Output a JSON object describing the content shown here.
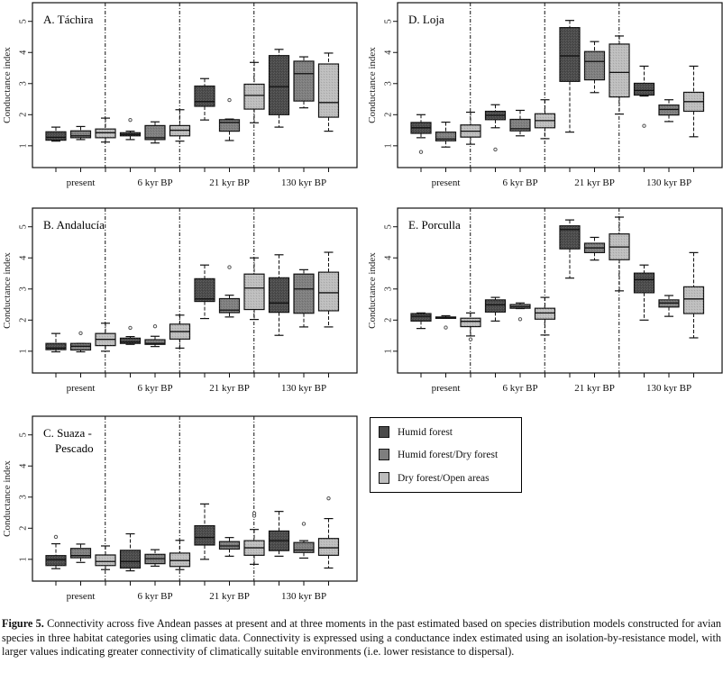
{
  "figure": {
    "caption_bold": "Figure 5.",
    "caption_text": " Connectivity across five Andean passes at present and at three moments in the past estimated based on species distribution models constructed for avian species in three habitat categories using climatic data. Connectivity is expressed using a conductance index estimated using an isolation-by-resistance model, with larger values indicating greater connectivity of climatically suitable environments (i.e. lower resistance to dispersal)."
  },
  "legend": {
    "items": [
      {
        "label": "Humid forest",
        "color": "#4a4a4a"
      },
      {
        "label": "Humid forest/Dry forest",
        "color": "#7e7e7e"
      },
      {
        "label": "Dry forest/Open areas",
        "color": "#bdbdbd"
      }
    ]
  },
  "chart_data": [
    {
      "type": "box",
      "title": "A. Táchira",
      "ylabel": "Conductance index",
      "ylim": [
        0.3,
        5.6
      ],
      "yticks": [
        1,
        2,
        3,
        4,
        5
      ],
      "categories": [
        "present",
        "6 kyr BP",
        "21 kyr BP",
        "130 kyr BP"
      ],
      "series": [
        "Humid forest",
        "Humid forest/Dry forest",
        "Dry forest/Open areas"
      ],
      "boxes": [
        [
          {
            "min": 1.15,
            "q1": 1.18,
            "med": 1.27,
            "q3": 1.45,
            "max": 1.6,
            "out": []
          },
          {
            "min": 1.2,
            "q1": 1.26,
            "med": 1.32,
            "q3": 1.48,
            "max": 1.62,
            "out": []
          },
          {
            "min": 1.12,
            "q1": 1.26,
            "med": 1.42,
            "q3": 1.54,
            "max": 1.89,
            "out": []
          }
        ],
        [
          {
            "min": 1.2,
            "q1": 1.32,
            "med": 1.36,
            "q3": 1.42,
            "max": 1.47,
            "out": [
              1.83
            ]
          },
          {
            "min": 1.09,
            "q1": 1.2,
            "med": 1.26,
            "q3": 1.65,
            "max": 1.77,
            "out": []
          },
          {
            "min": 1.15,
            "q1": 1.32,
            "med": 1.5,
            "q3": 1.65,
            "max": 2.16,
            "out": []
          }
        ],
        [
          {
            "min": 1.83,
            "q1": 2.27,
            "med": 2.42,
            "q3": 2.92,
            "max": 3.16,
            "out": []
          },
          {
            "min": 1.17,
            "q1": 1.47,
            "med": 1.75,
            "q3": 1.84,
            "max": 1.86,
            "out": [
              2.47
            ]
          },
          {
            "min": 1.74,
            "q1": 2.18,
            "med": 2.62,
            "q3": 2.98,
            "max": 3.68,
            "out": []
          }
        ],
        [
          {
            "min": 1.6,
            "q1": 2.0,
            "med": 2.9,
            "q3": 3.9,
            "max": 4.1,
            "out": []
          },
          {
            "min": 2.22,
            "q1": 2.44,
            "med": 3.32,
            "q3": 3.72,
            "max": 3.86,
            "out": []
          },
          {
            "min": 1.47,
            "q1": 1.92,
            "med": 2.39,
            "q3": 3.63,
            "max": 3.98,
            "out": []
          }
        ]
      ]
    },
    {
      "type": "box",
      "title": "B. Andalucía",
      "ylabel": "Conductance index",
      "ylim": [
        0.3,
        5.6
      ],
      "yticks": [
        1,
        2,
        3,
        4,
        5
      ],
      "categories": [
        "present",
        "6 kyr BP",
        "21 kyr BP",
        "130 kyr BP"
      ],
      "series": [
        "Humid forest",
        "Humid forest/Dry forest",
        "Dry forest/Open areas"
      ],
      "boxes": [
        [
          {
            "min": 0.98,
            "q1": 1.05,
            "med": 1.1,
            "q3": 1.25,
            "max": 1.57,
            "out": []
          },
          {
            "min": 0.98,
            "q1": 1.04,
            "med": 1.16,
            "q3": 1.25,
            "max": 1.25,
            "out": [
              1.58
            ]
          },
          {
            "min": 1.0,
            "q1": 1.18,
            "med": 1.38,
            "q3": 1.57,
            "max": 1.9,
            "out": []
          }
        ],
        [
          {
            "min": 1.22,
            "q1": 1.25,
            "med": 1.3,
            "q3": 1.42,
            "max": 1.47,
            "out": [
              1.75
            ]
          },
          {
            "min": 1.15,
            "q1": 1.22,
            "med": 1.25,
            "q3": 1.37,
            "max": 1.48,
            "out": [
              1.8
            ]
          },
          {
            "min": 1.1,
            "q1": 1.39,
            "med": 1.63,
            "q3": 1.87,
            "max": 2.16,
            "out": []
          }
        ],
        [
          {
            "min": 2.05,
            "q1": 2.6,
            "med": 2.68,
            "q3": 3.33,
            "max": 3.77,
            "out": []
          },
          {
            "min": 2.1,
            "q1": 2.24,
            "med": 2.32,
            "q3": 2.69,
            "max": 2.8,
            "out": [
              3.7
            ]
          },
          {
            "min": 2.02,
            "q1": 2.34,
            "med": 3.03,
            "q3": 3.48,
            "max": 4.0,
            "out": []
          }
        ],
        [
          {
            "min": 1.51,
            "q1": 2.25,
            "med": 2.55,
            "q3": 3.36,
            "max": 4.1,
            "out": []
          },
          {
            "min": 1.78,
            "q1": 2.22,
            "med": 3.0,
            "q3": 3.48,
            "max": 3.62,
            "out": []
          },
          {
            "min": 1.78,
            "q1": 2.3,
            "med": 2.88,
            "q3": 3.54,
            "max": 4.18,
            "out": []
          }
        ]
      ]
    },
    {
      "type": "box",
      "title": "C. Suaza -",
      "title_line2": "Pescado",
      "ylabel": "Conductance index",
      "ylim": [
        0.3,
        5.6
      ],
      "yticks": [
        1,
        2,
        3,
        4,
        5
      ],
      "categories": [
        "present",
        "6 kyr BP",
        "21 kyr BP",
        "130 kyr BP"
      ],
      "series": [
        "Humid forest",
        "Humid forest/Dry forest",
        "Dry forest/Open areas"
      ],
      "boxes": [
        [
          {
            "min": 0.7,
            "q1": 0.8,
            "med": 0.99,
            "q3": 1.12,
            "max": 1.5,
            "out": [
              1.72
            ]
          },
          {
            "min": 0.9,
            "q1": 1.05,
            "med": 1.12,
            "q3": 1.35,
            "max": 1.49,
            "out": []
          },
          {
            "min": 0.67,
            "q1": 0.8,
            "med": 0.93,
            "q3": 1.14,
            "max": 1.43,
            "out": []
          }
        ],
        [
          {
            "min": 0.63,
            "q1": 0.72,
            "med": 0.93,
            "q3": 1.29,
            "max": 1.82,
            "out": []
          },
          {
            "min": 0.78,
            "q1": 0.86,
            "med": 1.02,
            "q3": 1.16,
            "max": 1.31,
            "out": []
          },
          {
            "min": 0.67,
            "q1": 0.77,
            "med": 0.96,
            "q3": 1.2,
            "max": 1.61,
            "out": []
          }
        ],
        [
          {
            "min": 1.0,
            "q1": 1.46,
            "med": 1.7,
            "q3": 2.08,
            "max": 2.78,
            "out": []
          },
          {
            "min": 1.1,
            "q1": 1.33,
            "med": 1.43,
            "q3": 1.57,
            "max": 1.7,
            "out": []
          },
          {
            "min": 0.84,
            "q1": 1.13,
            "med": 1.37,
            "q3": 1.6,
            "max": 1.96,
            "out": [
              2.4,
              2.48
            ]
          }
        ],
        [
          {
            "min": 1.1,
            "q1": 1.28,
            "med": 1.6,
            "q3": 1.91,
            "max": 2.54,
            "out": []
          },
          {
            "min": 1.04,
            "q1": 1.22,
            "med": 1.3,
            "q3": 1.54,
            "max": 1.6,
            "out": [
              2.14
            ]
          },
          {
            "min": 0.72,
            "q1": 1.13,
            "med": 1.37,
            "q3": 1.67,
            "max": 2.31,
            "out": [
              2.96
            ]
          }
        ]
      ]
    },
    {
      "type": "box",
      "title": "D. Loja",
      "ylabel": "Conductance index",
      "ylim": [
        0.3,
        5.6
      ],
      "yticks": [
        1,
        2,
        3,
        4,
        5
      ],
      "categories": [
        "present",
        "6 kyr BP",
        "21 kyr BP",
        "130 kyr BP"
      ],
      "series": [
        "Humid forest",
        "Humid forest/Dry forest",
        "Dry forest/Open areas"
      ],
      "boxes": [
        [
          {
            "min": 1.26,
            "q1": 1.4,
            "med": 1.58,
            "q3": 1.75,
            "max": 2.0,
            "out": [
              0.8
            ]
          },
          {
            "min": 0.96,
            "q1": 1.16,
            "med": 1.22,
            "q3": 1.44,
            "max": 1.76,
            "out": []
          },
          {
            "min": 1.05,
            "q1": 1.28,
            "med": 1.47,
            "q3": 1.67,
            "max": 2.08,
            "out": []
          }
        ],
        [
          {
            "min": 1.58,
            "q1": 1.84,
            "med": 1.98,
            "q3": 2.11,
            "max": 2.32,
            "out": [
              0.88
            ]
          },
          {
            "min": 1.32,
            "q1": 1.48,
            "med": 1.55,
            "q3": 1.85,
            "max": 2.14,
            "out": []
          },
          {
            "min": 1.23,
            "q1": 1.58,
            "med": 1.81,
            "q3": 2.03,
            "max": 2.48,
            "out": []
          }
        ],
        [
          {
            "min": 1.44,
            "q1": 3.07,
            "med": 3.89,
            "q3": 4.8,
            "max": 5.03,
            "out": []
          },
          {
            "min": 2.71,
            "q1": 3.12,
            "med": 3.71,
            "q3": 4.03,
            "max": 4.35,
            "out": []
          },
          {
            "min": 2.02,
            "q1": 2.57,
            "med": 3.36,
            "q3": 4.27,
            "max": 4.53,
            "out": []
          }
        ],
        [
          {
            "min": 2.6,
            "q1": 2.63,
            "med": 2.78,
            "q3": 3.01,
            "max": 3.56,
            "out": [
              1.64
            ]
          },
          {
            "min": 1.78,
            "q1": 1.99,
            "med": 2.17,
            "q3": 2.31,
            "max": 2.48,
            "out": []
          },
          {
            "min": 1.29,
            "q1": 2.11,
            "med": 2.42,
            "q3": 2.72,
            "max": 3.56,
            "out": []
          }
        ]
      ]
    },
    {
      "type": "box",
      "title": "E. Porculla",
      "ylabel": "Conductance index",
      "ylim": [
        0.3,
        5.6
      ],
      "yticks": [
        1,
        2,
        3,
        4,
        5
      ],
      "categories": [
        "present",
        "6 kyr BP",
        "21 kyr BP",
        "130 kyr BP"
      ],
      "series": [
        "Humid forest",
        "Humid forest/Dry forest",
        "Dry forest/Open areas"
      ],
      "boxes": [
        [
          {
            "min": 1.73,
            "q1": 1.97,
            "med": 2.12,
            "q3": 2.21,
            "max": 2.23,
            "out": []
          },
          {
            "min": 2.06,
            "q1": 2.06,
            "med": 2.08,
            "q3": 2.1,
            "max": 2.14,
            "out": [
              1.76
            ]
          },
          {
            "min": 1.49,
            "q1": 1.79,
            "med": 1.96,
            "q3": 2.06,
            "max": 2.23,
            "out": [
              1.38
            ]
          }
        ],
        [
          {
            "min": 1.97,
            "q1": 2.26,
            "med": 2.49,
            "q3": 2.65,
            "max": 2.73,
            "out": []
          },
          {
            "min": 2.37,
            "q1": 2.38,
            "med": 2.43,
            "q3": 2.5,
            "max": 2.55,
            "out": [
              2.03
            ]
          },
          {
            "min": 1.52,
            "q1": 2.03,
            "med": 2.23,
            "q3": 2.38,
            "max": 2.73,
            "out": []
          }
        ],
        [
          {
            "min": 3.35,
            "q1": 4.29,
            "med": 4.91,
            "q3": 5.03,
            "max": 5.22,
            "out": []
          },
          {
            "min": 3.93,
            "q1": 4.17,
            "med": 4.32,
            "q3": 4.47,
            "max": 4.66,
            "out": []
          },
          {
            "min": 2.94,
            "q1": 3.94,
            "med": 4.35,
            "q3": 4.77,
            "max": 5.31,
            "out": []
          }
        ],
        [
          {
            "min": 2.0,
            "q1": 2.88,
            "med": 3.3,
            "q3": 3.51,
            "max": 3.77,
            "out": []
          },
          {
            "min": 2.12,
            "q1": 2.42,
            "med": 2.55,
            "q3": 2.65,
            "max": 2.79,
            "out": []
          },
          {
            "min": 1.43,
            "q1": 2.21,
            "med": 2.68,
            "q3": 3.07,
            "max": 4.17,
            "out": []
          }
        ]
      ]
    }
  ]
}
